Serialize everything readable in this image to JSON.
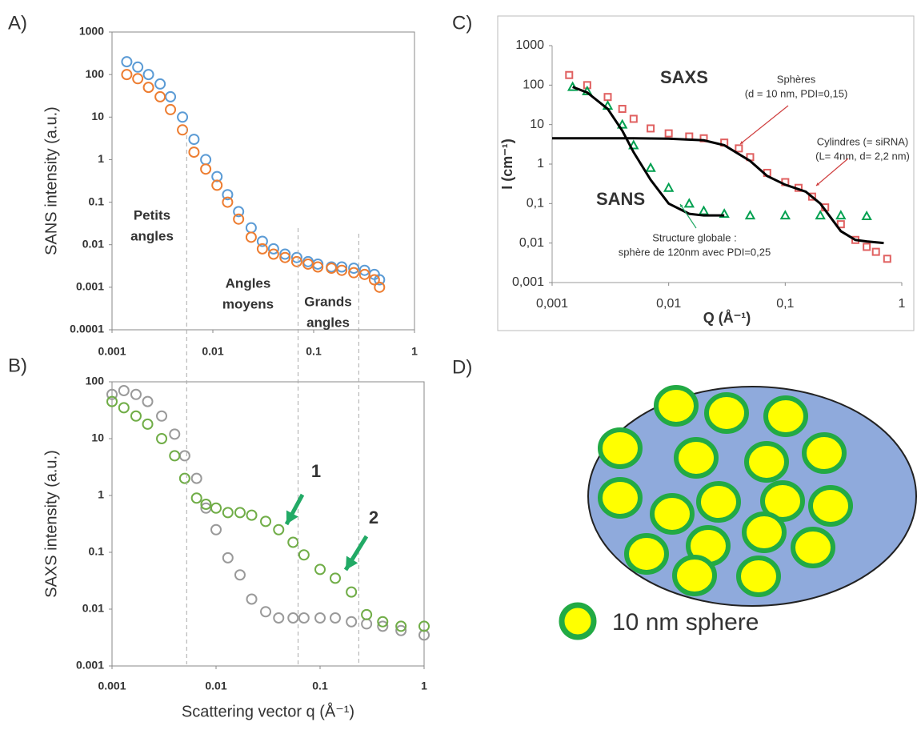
{
  "chart_data": [
    {
      "type": "scatter",
      "panel": "A)",
      "y_label": "SANS intensity (a.u.)",
      "log_x": true,
      "log_y": true,
      "xlim": [
        0.001,
        1
      ],
      "ylim": [
        0.0001,
        1000
      ],
      "xticks": [
        0.001,
        0.01,
        0.1,
        1
      ],
      "yticks": [
        0.0001,
        0.001,
        0.01,
        0.1,
        1,
        10,
        100,
        1000
      ],
      "boundaries": [
        0.0055,
        0.07,
        0.28
      ],
      "annotations": [
        {
          "lines": [
            "Petits",
            "angles"
          ]
        },
        {
          "lines": [
            "Angles",
            "moyens"
          ]
        },
        {
          "lines": [
            "Grands",
            "angles"
          ]
        }
      ],
      "x": [
        0.0014,
        0.0018,
        0.0023,
        0.003,
        0.0038,
        0.005,
        0.0065,
        0.0085,
        0.011,
        0.014,
        0.018,
        0.024,
        0.031,
        0.04,
        0.052,
        0.068,
        0.088,
        0.11,
        0.15,
        0.19,
        0.25,
        0.32,
        0.4,
        0.45
      ],
      "series": [
        {
          "color": "#5b9bd5",
          "marker": "circle",
          "values": [
            200,
            150,
            100,
            60,
            30,
            10,
            3,
            1,
            0.4,
            0.15,
            0.06,
            0.025,
            0.012,
            0.008,
            0.006,
            0.005,
            0.004,
            0.0035,
            0.003,
            0.003,
            0.0028,
            0.0025,
            0.002,
            0.0015
          ]
        },
        {
          "color": "#ed7d31",
          "marker": "circle",
          "values": [
            100,
            80,
            50,
            30,
            15,
            5,
            1.5,
            0.6,
            0.25,
            0.1,
            0.04,
            0.015,
            0.008,
            0.006,
            0.005,
            0.004,
            0.0035,
            0.003,
            0.0028,
            0.0025,
            0.0022,
            0.002,
            0.0015,
            0.001
          ]
        }
      ]
    },
    {
      "type": "scatter",
      "panel": "B)",
      "y_label": "SAXS intensity (a.u.)",
      "x_label": "Scattering vector q (Å⁻¹)",
      "log_x": true,
      "log_y": true,
      "xlim": [
        0.001,
        1
      ],
      "ylim": [
        0.001,
        100
      ],
      "xticks": [
        0.001,
        0.01,
        0.1,
        1
      ],
      "yticks": [
        0.001,
        0.01,
        0.1,
        1,
        10,
        100
      ],
      "annotations": [
        {
          "lines": [
            "1"
          ]
        },
        {
          "lines": [
            "2"
          ]
        }
      ],
      "x": [
        0.001,
        0.0013,
        0.0017,
        0.0022,
        0.003,
        0.004,
        0.005,
        0.0065,
        0.008,
        0.01,
        0.013,
        0.017,
        0.022,
        0.03,
        0.04,
        0.055,
        0.07,
        0.1,
        0.14,
        0.2,
        0.28,
        0.4,
        0.6,
        1
      ],
      "series": [
        {
          "color": "#9a9a9a",
          "marker": "circle",
          "values": [
            60,
            70,
            60,
            45,
            25,
            12,
            5,
            2,
            0.6,
            0.25,
            0.08,
            0.04,
            0.015,
            0.009,
            0.007,
            0.007,
            0.007,
            0.007,
            0.007,
            0.006,
            0.0055,
            0.005,
            0.0042,
            0.0035
          ]
        },
        {
          "color": "#70ad47",
          "marker": "circle",
          "values": [
            45,
            35,
            25,
            18,
            10,
            5,
            2,
            0.9,
            0.7,
            0.6,
            0.5,
            0.5,
            0.45,
            0.35,
            0.25,
            0.15,
            0.09,
            0.05,
            0.035,
            0.02,
            0.008,
            0.006,
            0.005,
            0.005
          ]
        }
      ]
    },
    {
      "type": "scatter",
      "panel": "C)",
      "y_label": "I (cm⁻¹)",
      "x_label": "Q (Å⁻¹)",
      "log_x": true,
      "log_y": true,
      "xlim": [
        0.001,
        1
      ],
      "ylim": [
        0.001,
        1000
      ],
      "xticks": [
        {
          "value": 0.001,
          "label": "0,001"
        },
        {
          "value": 0.01,
          "label": "0,01"
        },
        {
          "value": 0.1,
          "label": "0,1"
        },
        1
      ],
      "yticks": [
        {
          "value": 0.001,
          "label": "0,001"
        },
        {
          "value": 0.01,
          "label": "0,01"
        },
        {
          "value": 0.1,
          "label": "0,1"
        },
        1,
        10,
        100,
        1000
      ],
      "annotations": [
        {
          "lines": [
            "Sphères",
            "(d = 10 nm, PDI=0,15)"
          ],
          "color": "#c00000"
        },
        {
          "lines": [
            "Cylindres (= siRNA)",
            "(L= 4nm, d= 2,2 nm)"
          ],
          "color": "#c00000"
        },
        {
          "lines": [
            "Structure globale :",
            "sphère de 120nm avec PDI=0,25"
          ],
          "color": "#00a050"
        }
      ],
      "series": [
        {
          "name": "SAXS",
          "color": "#e06060",
          "marker": "square",
          "x": [
            0.0014,
            0.002,
            0.003,
            0.004,
            0.005,
            0.007,
            0.01,
            0.015,
            0.02,
            0.03,
            0.04,
            0.05,
            0.07,
            0.1,
            0.13,
            0.17,
            0.22,
            0.3,
            0.4,
            0.5,
            0.6,
            0.75
          ],
          "values": [
            180,
            100,
            50,
            25,
            14,
            8,
            6,
            5,
            4.5,
            3.5,
            2.5,
            1.5,
            0.6,
            0.35,
            0.25,
            0.15,
            0.08,
            0.03,
            0.012,
            0.008,
            0.006,
            0.004
          ]
        },
        {
          "name": "SANS",
          "color": "#00a050",
          "marker": "triangle",
          "x": [
            0.0015,
            0.002,
            0.003,
            0.004,
            0.005,
            0.007,
            0.01,
            0.015,
            0.02,
            0.03,
            0.05,
            0.1,
            0.2,
            0.3,
            0.5
          ],
          "values": [
            90,
            70,
            30,
            10,
            3,
            0.8,
            0.25,
            0.1,
            0.065,
            0.055,
            0.05,
            0.05,
            0.05,
            0.05,
            0.048
          ]
        },
        {
          "color": "#000000",
          "marker": "line",
          "x": [
            0.0015,
            0.002,
            0.003,
            0.004,
            0.005,
            0.007,
            0.01,
            0.015,
            0.02,
            0.03
          ],
          "values": [
            90,
            65,
            25,
            7,
            2,
            0.4,
            0.1,
            0.055,
            0.05,
            0.05
          ]
        },
        {
          "color": "#000000",
          "marker": "line",
          "x": [
            0.001,
            0.005,
            0.01,
            0.02,
            0.03,
            0.05,
            0.07,
            0.1,
            0.15,
            0.2,
            0.3,
            0.4,
            0.5,
            0.7
          ],
          "values": [
            4.5,
            4.5,
            4.4,
            4,
            3,
            1.2,
            0.5,
            0.3,
            0.2,
            0.1,
            0.02,
            0.012,
            0.011,
            0.01
          ]
        }
      ]
    }
  ],
  "diagram": {
    "panel": "D)",
    "legend": "10 nm sphere"
  }
}
